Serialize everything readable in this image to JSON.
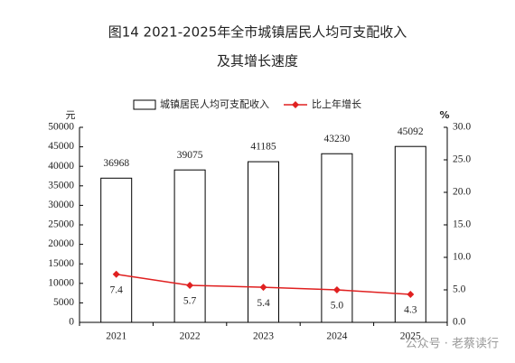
{
  "chart_data": {
    "type": "bar-line",
    "title": "图14  2021-2025年全市城镇居民人均可支配收入",
    "subtitle": "及其增长速度",
    "y_unit": "元",
    "y2_unit": "%",
    "categories": [
      "2021",
      "2022",
      "2023",
      "2024",
      "2025"
    ],
    "series": [
      {
        "name": "城镇居民人均可支配收入",
        "type": "bar",
        "color": "#ffffff",
        "values": [
          36968,
          39075,
          41185,
          43230,
          45092
        ]
      },
      {
        "name": "比上年增长",
        "type": "line",
        "axis": "y2",
        "color": "#e02020",
        "values": [
          7.4,
          5.7,
          5.4,
          5.0,
          4.3
        ],
        "value_labels": [
          "7.4",
          "5.7",
          "5.4",
          "5.0",
          "4.3"
        ]
      }
    ],
    "ylim": [
      0,
      50000
    ],
    "yticks": [
      0,
      5000,
      10000,
      15000,
      20000,
      25000,
      30000,
      35000,
      40000,
      45000,
      50000
    ],
    "y2lim": [
      0,
      30
    ],
    "y2ticks": [
      {
        "value": 0,
        "label": "0.0"
      },
      {
        "value": 5,
        "label": "5.0"
      },
      {
        "value": 10,
        "label": "10.0"
      },
      {
        "value": 15,
        "label": "15.0"
      },
      {
        "value": 20,
        "label": "20.0"
      },
      {
        "value": 25,
        "label": "25.0"
      },
      {
        "value": 30,
        "label": "30.0"
      }
    ],
    "legend": "top",
    "watermark": "公众号 · 老蔡读行"
  }
}
